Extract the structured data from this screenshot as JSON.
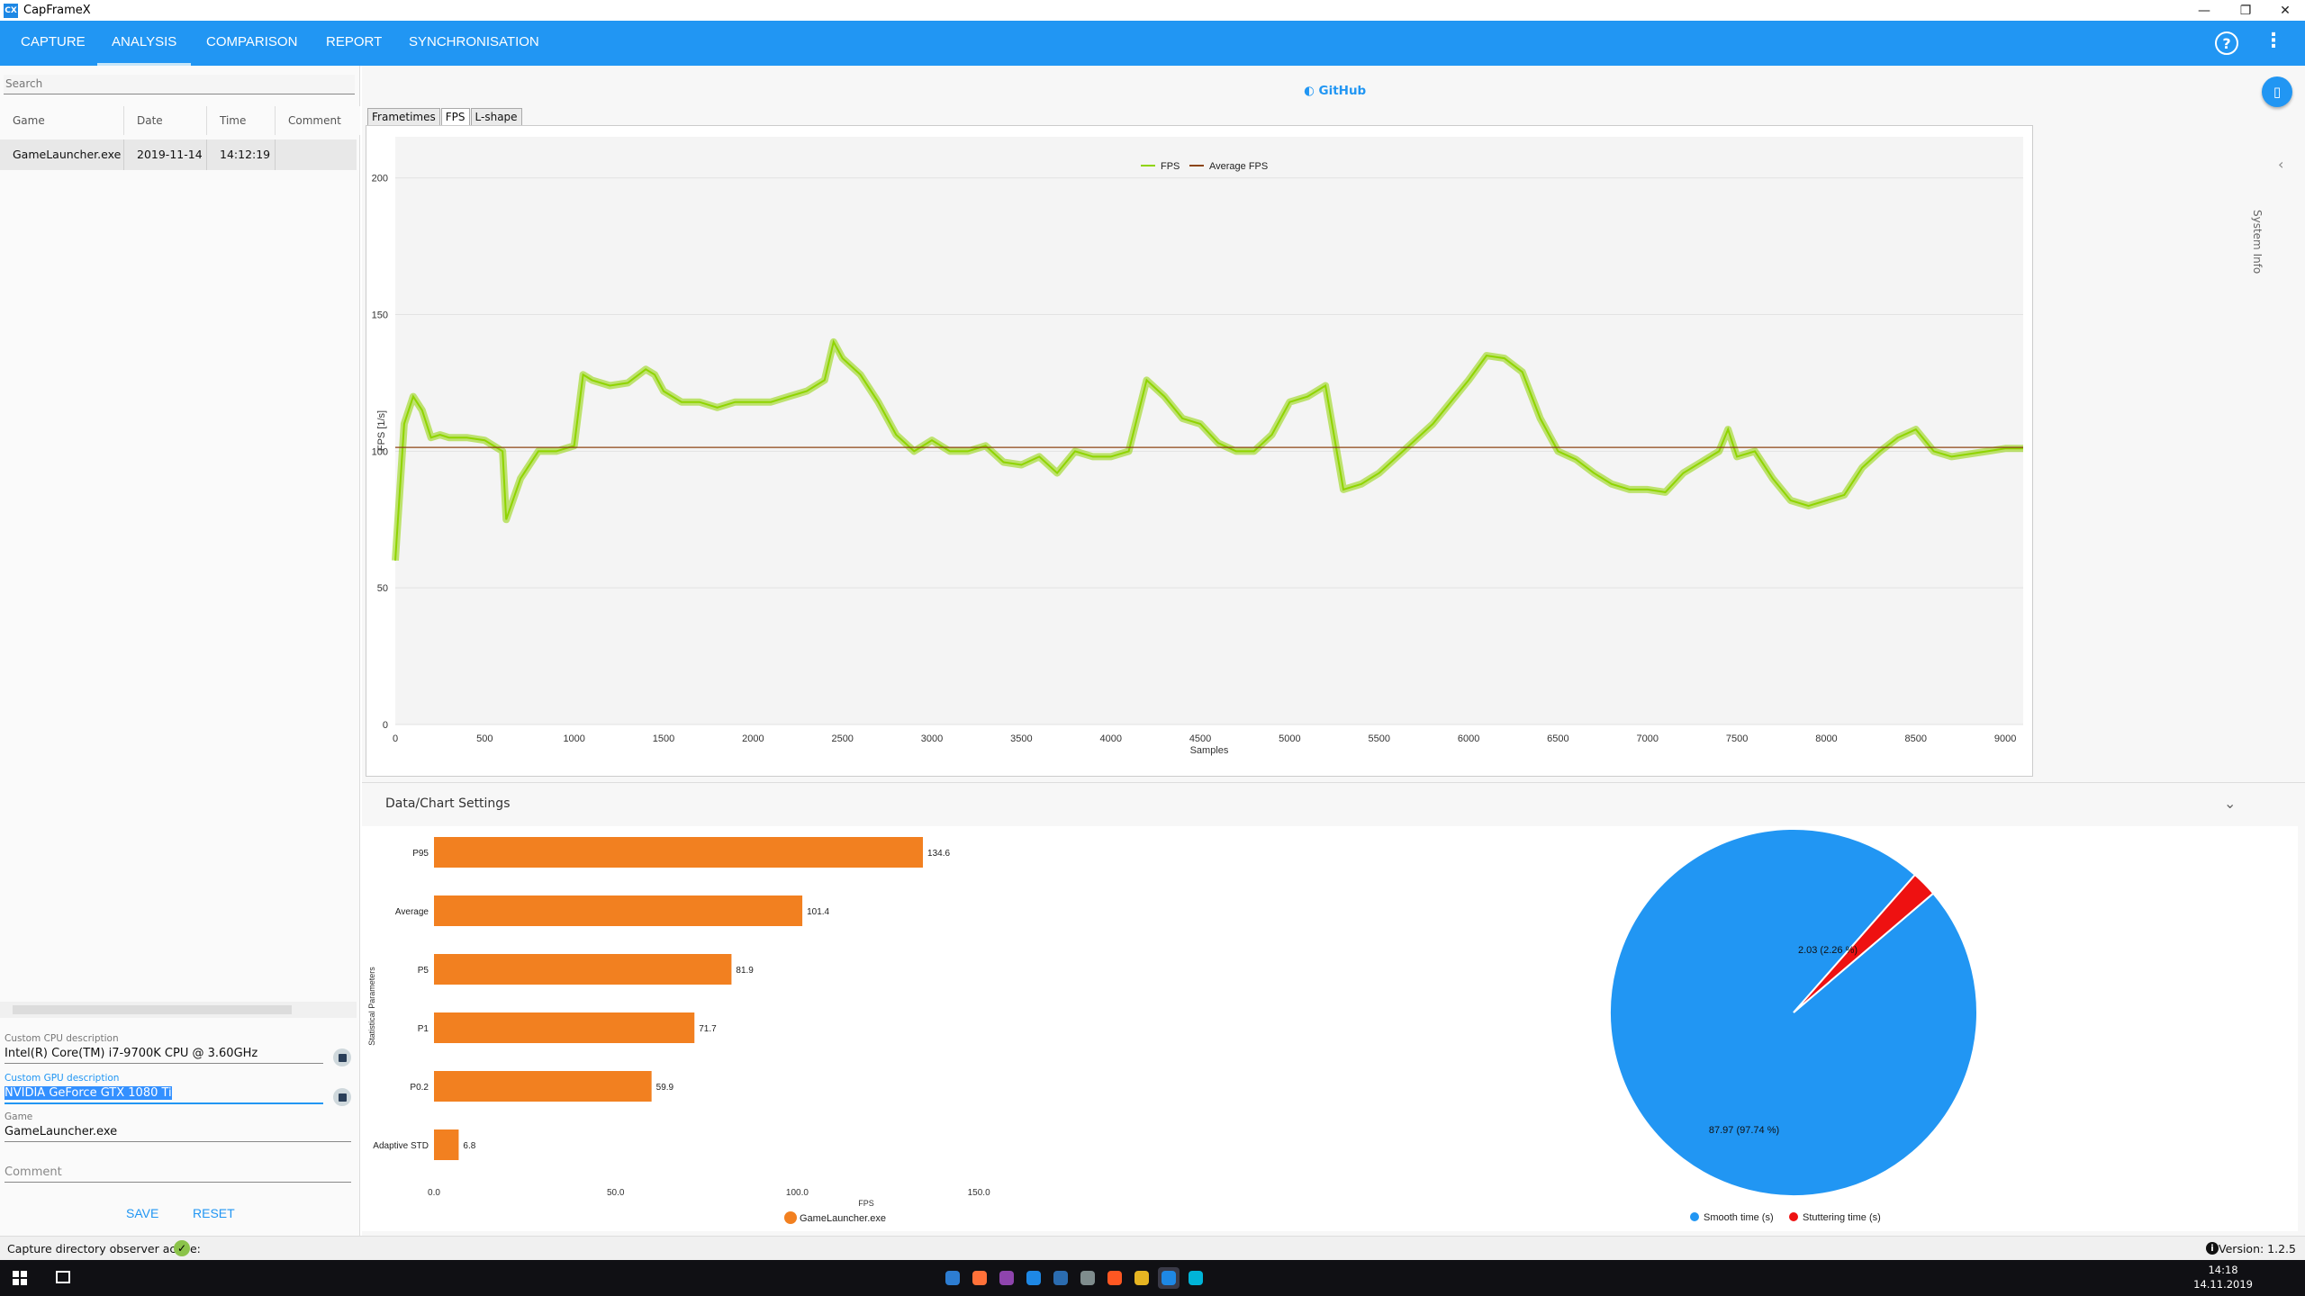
{
  "window": {
    "title": "CapFrameX",
    "app_icon": "CX",
    "controls": [
      "—",
      "❐",
      "✕"
    ]
  },
  "nav": {
    "tabs": [
      {
        "label": "CAPTURE",
        "active": false
      },
      {
        "label": "ANALYSIS",
        "active": true
      },
      {
        "label": "COMPARISON",
        "active": false
      },
      {
        "label": "REPORT",
        "active": false
      },
      {
        "label": "SYNCHRONISATION",
        "active": false
      }
    ],
    "help_icon": "?",
    "menu_icon": "⋮"
  },
  "records": {
    "search_placeholder": "Search",
    "columns": [
      "Game",
      "Date",
      "Time",
      "Comment"
    ],
    "rows": [
      {
        "game": "GameLauncher.exe",
        "date": "2019-11-14",
        "time": "14:12:19",
        "comment": ""
      }
    ]
  },
  "descriptions": {
    "cpu_label": "Custom CPU description",
    "cpu_value": "Intel(R) Core(TM) i7-9700K CPU @ 3.60GHz",
    "gpu_label": "Custom GPU description",
    "gpu_value": "NVIDIA GeForce GTX 1080 Ti",
    "game_label": "Game",
    "game_value": "GameLauncher.exe",
    "comment_placeholder": "Comment",
    "save_label": "SAVE",
    "reset_label": "RESET"
  },
  "main": {
    "github_label": "GitHub",
    "subtabs": [
      {
        "label": "Frametimes",
        "active": false
      },
      {
        "label": "FPS",
        "active": true
      },
      {
        "label": "L-shape",
        "active": false
      }
    ],
    "system_info_label": "System Info",
    "settings_label": "Data/Chart Settings",
    "colors": {
      "fps": "#8fd400",
      "avg": "#8b4513",
      "bar": "#f28020",
      "smooth": "#2196f3",
      "stutter": "#ee1111"
    }
  },
  "chart_data": [
    {
      "type": "line",
      "ylabel": "FPS [1/s]",
      "xlabel": "Samples",
      "ylim": [
        0,
        200
      ],
      "xlim": [
        0,
        9100
      ],
      "yticks": [
        "0",
        "50",
        "100",
        "150",
        "200"
      ],
      "xticks": [
        "0",
        "500",
        "1000",
        "1500",
        "2000",
        "2500",
        "3000",
        "3500",
        "4000",
        "4500",
        "5000",
        "5500",
        "6000",
        "6500",
        "7000",
        "7500",
        "8000",
        "8500",
        "9000"
      ],
      "legend": "top-center",
      "series": [
        {
          "name": "FPS",
          "x": [
            0,
            50,
            100,
            150,
            200,
            250,
            300,
            400,
            500,
            600,
            620,
            700,
            800,
            900,
            1000,
            1050,
            1100,
            1200,
            1300,
            1400,
            1450,
            1500,
            1600,
            1700,
            1800,
            1900,
            2000,
            2100,
            2200,
            2300,
            2400,
            2450,
            2500,
            2600,
            2700,
            2800,
            2900,
            3000,
            3100,
            3200,
            3300,
            3400,
            3500,
            3600,
            3700,
            3800,
            3900,
            4000,
            4100,
            4200,
            4300,
            4400,
            4500,
            4600,
            4700,
            4800,
            4900,
            5000,
            5100,
            5200,
            5300,
            5400,
            5500,
            5600,
            5700,
            5800,
            5900,
            6000,
            6100,
            6200,
            6300,
            6400,
            6500,
            6600,
            6700,
            6800,
            6900,
            7000,
            7100,
            7200,
            7300,
            7400,
            7450,
            7500,
            7600,
            7700,
            7800,
            7900,
            8000,
            8100,
            8200,
            8300,
            8400,
            8500,
            8600,
            8700,
            8800,
            8900,
            9000,
            9100
          ],
          "values": [
            60,
            110,
            120,
            115,
            105,
            106,
            105,
            105,
            104,
            100,
            75,
            90,
            100,
            100,
            102,
            128,
            126,
            124,
            125,
            130,
            128,
            122,
            118,
            118,
            116,
            118,
            118,
            118,
            120,
            122,
            126,
            140,
            134,
            128,
            118,
            106,
            100,
            104,
            100,
            100,
            102,
            96,
            95,
            98,
            92,
            100,
            98,
            98,
            100,
            126,
            120,
            112,
            110,
            103,
            100,
            100,
            106,
            118,
            120,
            124,
            86,
            88,
            92,
            98,
            104,
            110,
            118,
            126,
            135,
            134,
            129,
            112,
            100,
            97,
            92,
            88,
            86,
            86,
            85,
            92,
            96,
            100,
            108,
            98,
            100,
            90,
            82,
            80,
            82,
            84,
            94,
            100,
            105,
            108,
            100,
            98,
            99,
            100,
            101,
            101
          ]
        },
        {
          "name": "Average FPS",
          "value": 101.4
        }
      ]
    },
    {
      "type": "bar",
      "orientation": "horizontal",
      "categories": [
        "P95",
        "Average",
        "P5",
        "P1",
        "P0.2",
        "Adaptive STD"
      ],
      "values": [
        134.6,
        101.4,
        81.9,
        71.7,
        59.9,
        6.8
      ],
      "value_labels": [
        "134.6",
        "101.4",
        "81.9",
        "71.7",
        "59.9",
        "6.8"
      ],
      "xlabel": "FPS",
      "ylabel": "Statistical Parameters",
      "xticks": [
        "0.0",
        "50.0",
        "100.0",
        "150.0"
      ],
      "xlim": [
        0,
        150
      ],
      "series": [
        {
          "name": "GameLauncher.exe"
        }
      ]
    },
    {
      "type": "pie",
      "slices": [
        {
          "name": "Smooth time (s)",
          "value": 87.97,
          "label": "87.97 (97.74 %)"
        },
        {
          "name": "Stuttering time (s)",
          "value": 2.03,
          "label": "2.03 (2.26 %)"
        }
      ],
      "legend": "bottom-center"
    }
  ],
  "status": {
    "observer_text": "Capture directory observer active:",
    "version": "Version: 1.2.5"
  },
  "taskbar": {
    "time": "14:18",
    "date": "14.11.2019",
    "apps": [
      "#2d7dd2",
      "#ff7139",
      "#8e44ad",
      "#1e88e5",
      "#2b6cb0",
      "#7f8c8d",
      "#ff5722",
      "#e6b422",
      "#1e88e5",
      "#00b4d8"
    ]
  }
}
